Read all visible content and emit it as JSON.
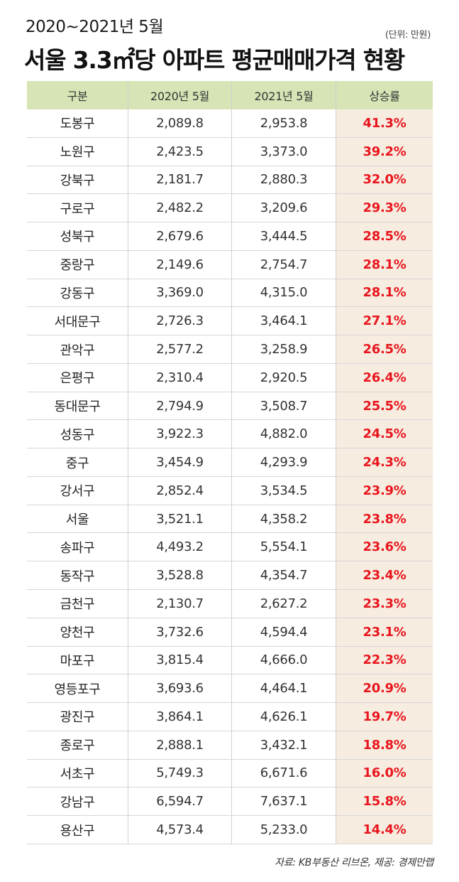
{
  "header": {
    "subtitle": "2020~2021년 5월",
    "unit": "(단위: 만원)",
    "title": "서울 3.3㎡당 아파트 평균매매가격 현황"
  },
  "source": "자료: KB부동산 리브온, 제공: 경제만랩",
  "colors": {
    "header_bg": "#d7e5b6",
    "rate_bg": "#f7ece0",
    "rate_text": "#e8161e"
  },
  "chart_data": {
    "type": "table",
    "title": "서울 3.3㎡당 아파트 평균매매가격 현황",
    "columns": [
      "구분",
      "2020년 5월",
      "2021년 5월",
      "상승률"
    ],
    "rows": [
      [
        "도봉구",
        "2,089.8",
        "2,953.8",
        "41.3%"
      ],
      [
        "노원구",
        "2,423.5",
        "3,373.0",
        "39.2%"
      ],
      [
        "강북구",
        "2,181.7",
        "2,880.3",
        "32.0%"
      ],
      [
        "구로구",
        "2,482.2",
        "3,209.6",
        "29.3%"
      ],
      [
        "성북구",
        "2,679.6",
        "3,444.5",
        "28.5%"
      ],
      [
        "중랑구",
        "2,149.6",
        "2,754.7",
        "28.1%"
      ],
      [
        "강동구",
        "3,369.0",
        "4,315.0",
        "28.1%"
      ],
      [
        "서대문구",
        "2,726.3",
        "3,464.1",
        "27.1%"
      ],
      [
        "관악구",
        "2,577.2",
        "3,258.9",
        "26.5%"
      ],
      [
        "은평구",
        "2,310.4",
        "2,920.5",
        "26.4%"
      ],
      [
        "동대문구",
        "2,794.9",
        "3,508.7",
        "25.5%"
      ],
      [
        "성동구",
        "3,922.3",
        "4,882.0",
        "24.5%"
      ],
      [
        "중구",
        "3,454.9",
        "4,293.9",
        "24.3%"
      ],
      [
        "강서구",
        "2,852.4",
        "3,534.5",
        "23.9%"
      ],
      [
        "서울",
        "3,521.1",
        "4,358.2",
        "23.8%"
      ],
      [
        "송파구",
        "4,493.2",
        "5,554.1",
        "23.6%"
      ],
      [
        "동작구",
        "3,528.8",
        "4,354.7",
        "23.4%"
      ],
      [
        "금천구",
        "2,130.7",
        "2,627.2",
        "23.3%"
      ],
      [
        "양천구",
        "3,732.6",
        "4,594.4",
        "23.1%"
      ],
      [
        "마포구",
        "3,815.4",
        "4,666.0",
        "22.3%"
      ],
      [
        "영등포구",
        "3,693.6",
        "4,464.1",
        "20.9%"
      ],
      [
        "광진구",
        "3,864.1",
        "4,626.1",
        "19.7%"
      ],
      [
        "종로구",
        "2,888.1",
        "3,432.1",
        "18.8%"
      ],
      [
        "서초구",
        "5,749.3",
        "6,671.6",
        "16.0%"
      ],
      [
        "강남구",
        "6,594.7",
        "7,637.1",
        "15.8%"
      ],
      [
        "용산구",
        "4,573.4",
        "5,233.0",
        "14.4%"
      ]
    ]
  }
}
